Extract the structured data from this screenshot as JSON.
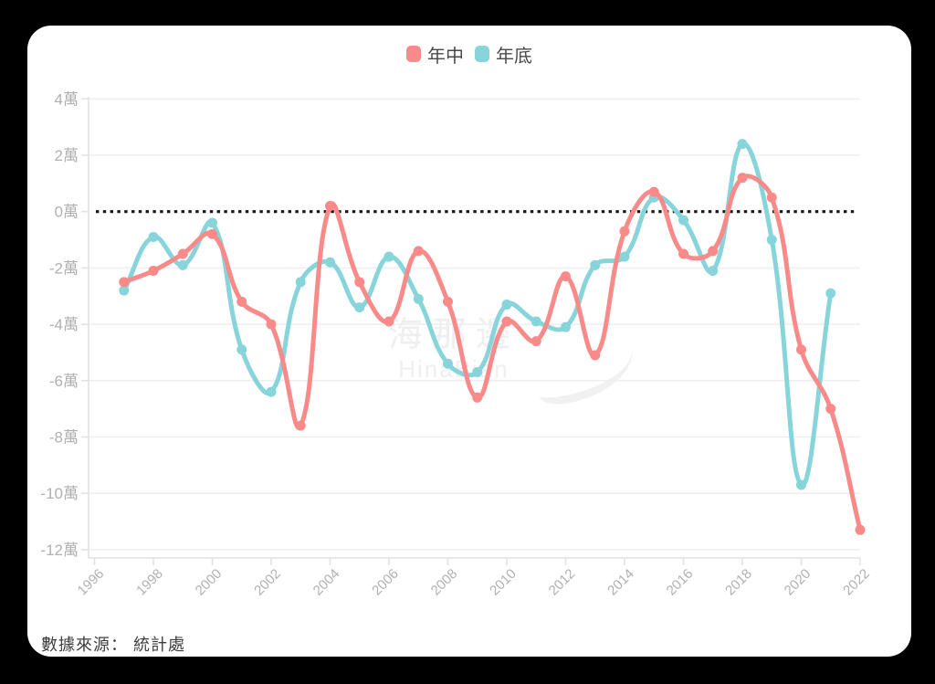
{
  "page": {
    "background": "#000000",
    "card_background": "#ffffff"
  },
  "legend": {
    "items": [
      {
        "label": "年中",
        "color": "#f98a8a"
      },
      {
        "label": "年底",
        "color": "#87d5da"
      }
    ]
  },
  "watermark": {
    "line1": "海那邊",
    "line2": "HinaBian"
  },
  "source": {
    "label": "數據來源： 統計處"
  },
  "chart_data": {
    "type": "line",
    "smoothing": true,
    "title": "",
    "xlabel": "",
    "ylabel": "",
    "unit": "萬",
    "xlim": [
      1996,
      2022
    ],
    "ylim": [
      -12,
      4
    ],
    "grid": "horizontal",
    "legend_position": "top-center",
    "zero_line": {
      "value": 0,
      "style": "dotted",
      "color": "#151515"
    },
    "axis_color": "#e2e2e2",
    "grid_color": "#efefef",
    "tick_label_color": "#b0b0b0",
    "x": [
      1997,
      1998,
      1999,
      2000,
      2001,
      2002,
      2003,
      2004,
      2005,
      2006,
      2007,
      2008,
      2009,
      2010,
      2011,
      2012,
      2013,
      2014,
      2015,
      2016,
      2017,
      2018,
      2019,
      2020,
      2021,
      2022
    ],
    "x_ticks": [
      "1996",
      "1998",
      "2000",
      "2002",
      "2004",
      "2006",
      "2008",
      "2010",
      "2012",
      "2014",
      "2016",
      "2018",
      "2020",
      "2022"
    ],
    "y_ticks": [
      {
        "value": 4,
        "label": "4萬"
      },
      {
        "value": 2,
        "label": "2萬"
      },
      {
        "value": 0,
        "label": "0萬"
      },
      {
        "value": -2,
        "label": "-2萬"
      },
      {
        "value": -4,
        "label": "-4萬"
      },
      {
        "value": -6,
        "label": "-6萬"
      },
      {
        "value": -8,
        "label": "-8萬"
      },
      {
        "value": -10,
        "label": "-10萬"
      },
      {
        "value": -12,
        "label": "-12萬"
      }
    ],
    "series": [
      {
        "name": "年中",
        "color": "#f98a8a",
        "values": [
          -2.5,
          -2.1,
          -1.5,
          -0.8,
          -3.2,
          -4.0,
          -7.6,
          0.2,
          -2.5,
          -3.9,
          -1.4,
          -3.2,
          -6.6,
          -3.9,
          -4.6,
          -2.3,
          -5.1,
          -0.7,
          0.7,
          -1.5,
          -1.4,
          1.2,
          0.5,
          -4.9,
          -7.0,
          -11.3
        ]
      },
      {
        "name": "年底",
        "color": "#87d5da",
        "values": [
          -2.8,
          -0.9,
          -1.9,
          -0.4,
          -4.9,
          -6.4,
          -2.5,
          -1.8,
          -3.4,
          -1.6,
          -3.1,
          -5.4,
          -5.7,
          -3.3,
          -3.9,
          -4.1,
          -1.9,
          -1.6,
          0.5,
          -0.3,
          -2.1,
          2.4,
          -1.0,
          -9.7,
          -2.9,
          null
        ]
      }
    ]
  }
}
